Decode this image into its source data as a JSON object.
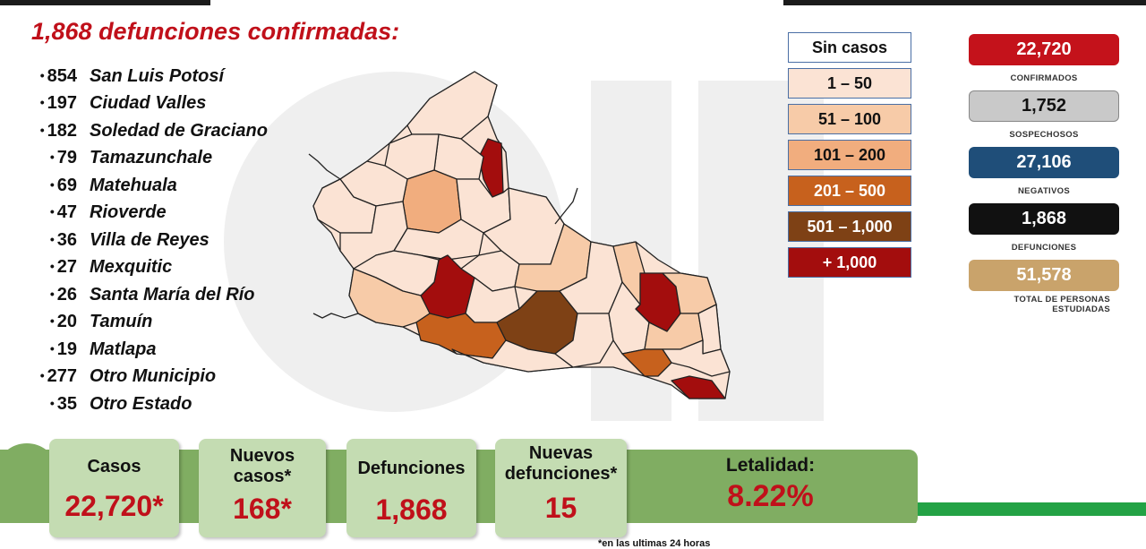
{
  "headline": "1,868 defunciones confirmadas:",
  "municipalities": [
    {
      "count": "854",
      "name": "San Luis Potosí"
    },
    {
      "count": "197",
      "name": "Ciudad Valles"
    },
    {
      "count": "182",
      "name": "Soledad de Graciano"
    },
    {
      "count": "79",
      "name": "Tamazunchale"
    },
    {
      "count": "69",
      "name": "Matehuala"
    },
    {
      "count": "47",
      "name": "Rioverde"
    },
    {
      "count": "36",
      "name": "Villa de Reyes"
    },
    {
      "count": "27",
      "name": "Mexquitic"
    },
    {
      "count": "26",
      "name": "Santa María del Río"
    },
    {
      "count": "20",
      "name": "Tamuín"
    },
    {
      "count": "19",
      "name": "Matlapa"
    },
    {
      "count": "277",
      "name": "Otro Municipio"
    },
    {
      "count": "35",
      "name": "Otro Estado"
    }
  ],
  "legend": [
    {
      "label": "Sin casos",
      "color": "#ffffff",
      "text_color": "#111111"
    },
    {
      "label": "1 – 50",
      "color": "#fbe3d4",
      "text_color": "#111111"
    },
    {
      "label": "51 – 100",
      "color": "#f7cba8",
      "text_color": "#111111"
    },
    {
      "label": "101 – 200",
      "color": "#f1ad7e",
      "text_color": "#111111"
    },
    {
      "label": "201 – 500",
      "color": "#c7611d",
      "text_color": "#ffffff"
    },
    {
      "label": "501 – 1,000",
      "color": "#7e4115",
      "text_color": "#ffffff"
    },
    {
      "label": "+ 1,000",
      "color": "#a30d0d",
      "text_color": "#ffffff"
    }
  ],
  "stats": {
    "confirmados": {
      "value": "22,720",
      "caption": "CONFIRMADOS",
      "color": "#c4121b",
      "text_color": "#ffffff"
    },
    "sospechosos": {
      "value": "1,752",
      "caption": "SOSPECHOSOS",
      "color": "#c9c9c9",
      "text_color": "#111111"
    },
    "negativos": {
      "value": "27,106",
      "caption": "NEGATIVOS",
      "color": "#1f4e79",
      "text_color": "#ffffff"
    },
    "defunciones": {
      "value": "1,868",
      "caption": "DEFUNCIONES",
      "color": "#111111",
      "text_color": "#ffffff"
    },
    "estudiadas": {
      "value": "51,578",
      "caption_1": "TOTAL DE PERSONAS",
      "caption_2": "ESTUDIADAS",
      "color": "#c9a36b",
      "text_color": "#ffffff"
    }
  },
  "cards": {
    "casos": {
      "label": "Casos",
      "value": "22,720*"
    },
    "nuevos": {
      "label_1": "Nuevos",
      "label_2": "casos*",
      "value": "168*"
    },
    "defunciones": {
      "label": "Defunciones",
      "value": "1,868"
    },
    "nuevas_def": {
      "label_1": "Nuevas",
      "label_2": "defunciones*",
      "value": "15"
    },
    "letalidad": {
      "label": "Letalidad:",
      "value": "8.22%"
    }
  },
  "footnote": "*en las ultimas 24 horas",
  "map_colors": {
    "c0": "#fbe3d4",
    "c1": "#f7cba8",
    "c2": "#f1ad7e",
    "c3": "#c7611d",
    "c4": "#7e4115",
    "c5": "#a30d0d"
  }
}
